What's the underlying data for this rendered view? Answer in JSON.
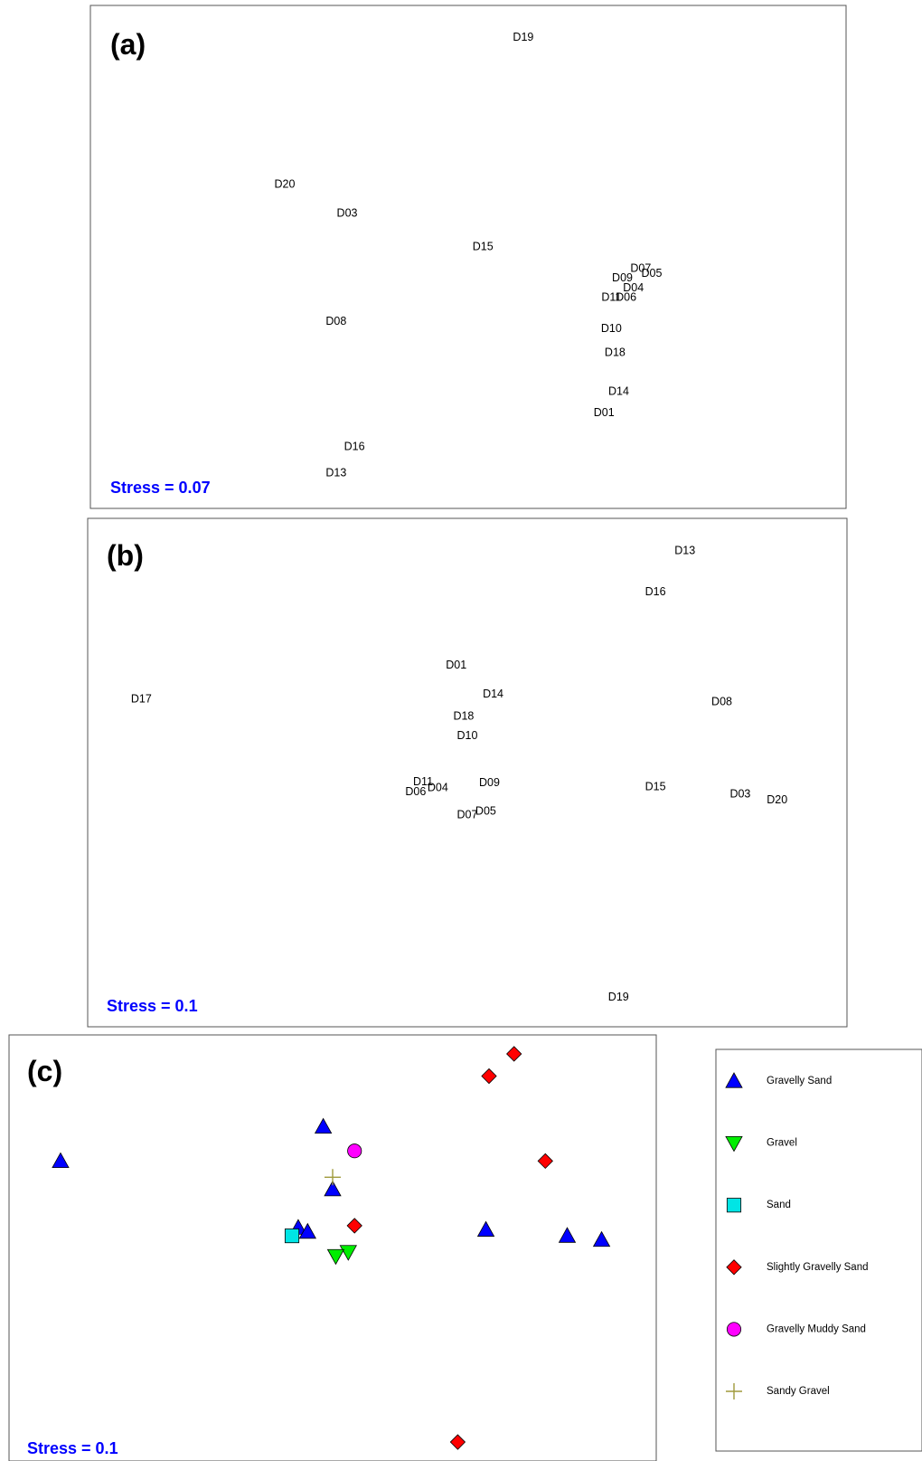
{
  "colors": {
    "stress": "#0000ff",
    "gravelly_sand": "#0000ff",
    "gravel": "#00ee00",
    "sand": "#00e5e5",
    "slightly_gravelly_sand": "#ff0000",
    "gravelly_muddy_sand": "#ff00ff",
    "sandy_gravel": "#a09a3c"
  },
  "chart_data": [
    {
      "type": "scatter",
      "panel": "(a)",
      "stress_text": "Stress = 0.07",
      "axes": "none",
      "x_range": [
        0,
        100
      ],
      "y_range": [
        0,
        100
      ],
      "points": [
        {
          "label": "D19",
          "x": 57.5,
          "y": 95.5
        },
        {
          "label": "D20",
          "x": 25.0,
          "y": 65.0
        },
        {
          "label": "D03",
          "x": 33.5,
          "y": 59.0
        },
        {
          "label": "D15",
          "x": 52.0,
          "y": 52.0
        },
        {
          "label": "D07",
          "x": 73.5,
          "y": 47.5
        },
        {
          "label": "D05",
          "x": 75.0,
          "y": 46.5
        },
        {
          "label": "D09",
          "x": 71.0,
          "y": 45.5
        },
        {
          "label": "D04",
          "x": 72.5,
          "y": 43.5
        },
        {
          "label": "D11",
          "x": 69.5,
          "y": 41.5
        },
        {
          "label": "D06",
          "x": 71.5,
          "y": 41.5
        },
        {
          "label": "D08",
          "x": 32.0,
          "y": 36.5
        },
        {
          "label": "D10",
          "x": 69.5,
          "y": 35.0
        },
        {
          "label": "D18",
          "x": 70.0,
          "y": 30.0
        },
        {
          "label": "D14",
          "x": 70.5,
          "y": 22.0
        },
        {
          "label": "D01",
          "x": 68.5,
          "y": 17.5
        },
        {
          "label": "D16",
          "x": 34.5,
          "y": 10.5
        },
        {
          "label": "D13",
          "x": 32.0,
          "y": 5.0
        }
      ]
    },
    {
      "type": "scatter",
      "panel": "(b)",
      "stress_text": "Stress = 0.1",
      "axes": "none",
      "x_range": [
        0,
        100
      ],
      "y_range": [
        0,
        100
      ],
      "points": [
        {
          "label": "D13",
          "x": 79.5,
          "y": 95.5
        },
        {
          "label": "D16",
          "x": 75.5,
          "y": 87.0
        },
        {
          "label": "D01",
          "x": 48.5,
          "y": 72.0
        },
        {
          "label": "D17",
          "x": 5.8,
          "y": 65.0
        },
        {
          "label": "D14",
          "x": 53.5,
          "y": 66.0
        },
        {
          "label": "D08",
          "x": 84.5,
          "y": 64.5
        },
        {
          "label": "D18",
          "x": 49.5,
          "y": 61.5
        },
        {
          "label": "D10",
          "x": 50.0,
          "y": 57.5
        },
        {
          "label": "D11",
          "x": 44.0,
          "y": 48.0
        },
        {
          "label": "D04",
          "x": 46.0,
          "y": 46.8
        },
        {
          "label": "D06",
          "x": 43.0,
          "y": 46.0
        },
        {
          "label": "D09",
          "x": 53.0,
          "y": 47.8
        },
        {
          "label": "D15",
          "x": 75.5,
          "y": 47.0
        },
        {
          "label": "D03",
          "x": 87.0,
          "y": 45.5
        },
        {
          "label": "D20",
          "x": 92.0,
          "y": 44.3
        },
        {
          "label": "D05",
          "x": 52.5,
          "y": 42.0
        },
        {
          "label": "D07",
          "x": 50.0,
          "y": 41.2
        },
        {
          "label": "D19",
          "x": 70.5,
          "y": 3.8
        }
      ]
    },
    {
      "type": "scatter",
      "panel": "(c)",
      "stress_text": "Stress = 0.1",
      "axes": "none",
      "x_range": [
        0,
        100
      ],
      "y_range": [
        0,
        100
      ],
      "legend_position": "right",
      "series": [
        {
          "name": "Gravelly Sand",
          "marker": "triangle-up",
          "color": "#0000ff",
          "points": [
            [
              6.5,
              71.5
            ],
            [
              48.5,
              80.0
            ],
            [
              50.0,
              64.5
            ],
            [
              44.5,
              55.0
            ],
            [
              46.0,
              54.0
            ],
            [
              74.5,
              54.5
            ],
            [
              87.5,
              53.0
            ],
            [
              93.0,
              52.0
            ]
          ]
        },
        {
          "name": "Gravel",
          "marker": "triangle-down",
          "color": "#00ee00",
          "points": [
            [
              52.5,
              49.0
            ],
            [
              50.5,
              48.0
            ]
          ]
        },
        {
          "name": "Sand",
          "marker": "square",
          "color": "#00e5e5",
          "points": [
            [
              43.5,
              53.0
            ]
          ]
        },
        {
          "name": "Slightly Gravelly Sand",
          "marker": "diamond",
          "color": "#ff0000",
          "points": [
            [
              79.0,
              98.0
            ],
            [
              75.0,
              92.5
            ],
            [
              84.0,
              71.5
            ],
            [
              53.5,
              55.5
            ],
            [
              70.0,
              2.0
            ]
          ]
        },
        {
          "name": "Gravelly Muddy Sand",
          "marker": "circle",
          "color": "#ff00ff",
          "points": [
            [
              53.5,
              74.0
            ]
          ]
        },
        {
          "name": "Sandy Gravel",
          "marker": "plus",
          "color": "#a09a3c",
          "points": [
            [
              50.0,
              67.5
            ]
          ]
        }
      ]
    }
  ]
}
